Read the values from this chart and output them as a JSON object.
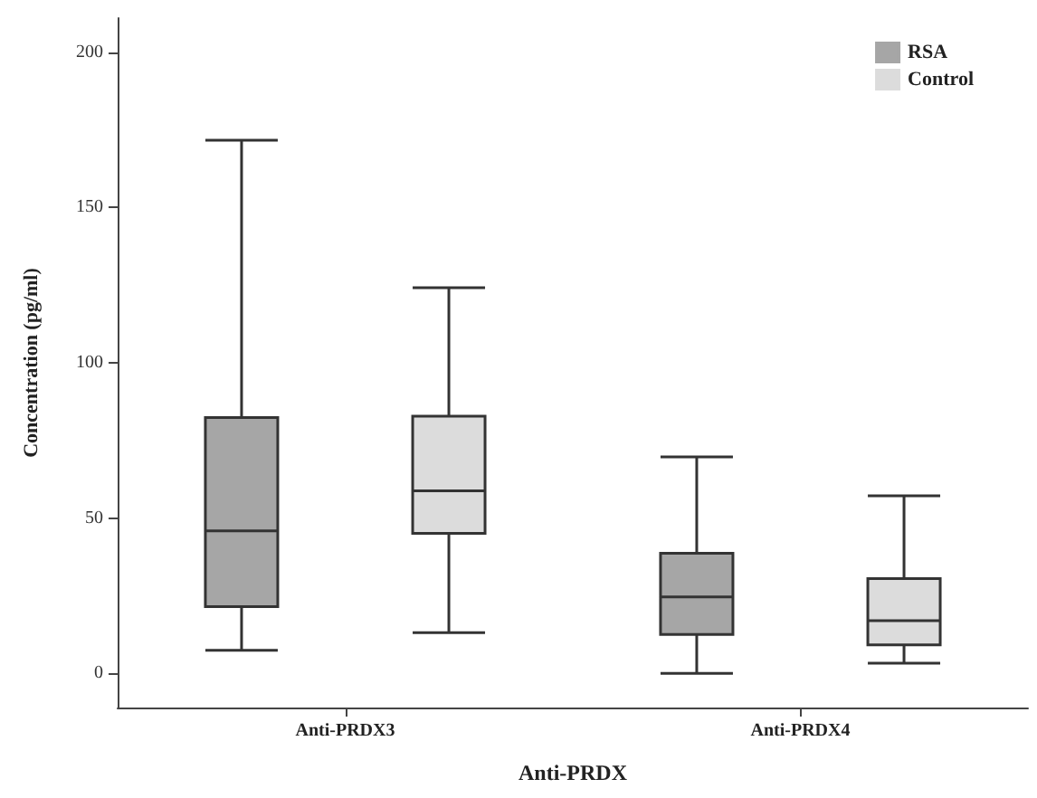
{
  "chart_data": {
    "type": "box",
    "xlabel": "Anti-PRDX",
    "ylabel": "Concentration (pg/ml)",
    "categories": [
      "Anti-PRDX3",
      "Anti-PRDX4"
    ],
    "series": [
      {
        "name": "RSA",
        "color": "#a6a6a6",
        "boxes": [
          {
            "low": 7.4,
            "q1": 21.5,
            "median": 45.9,
            "q3": 82.4,
            "high": 171.7
          },
          {
            "low": 0,
            "q1": 12.5,
            "median": 24.6,
            "q3": 38.7,
            "high": 69.7
          }
        ]
      },
      {
        "name": "Control",
        "color": "#dcdcdc",
        "boxes": [
          {
            "low": 13.1,
            "q1": 45.1,
            "median": 58.8,
            "q3": 82.8,
            "high": 124.2
          },
          {
            "low": 3.3,
            "q1": 9.2,
            "median": 17,
            "q3": 30.5,
            "high": 57.2
          }
        ]
      }
    ],
    "ylim": [
      -11,
      211
    ],
    "yticks": [
      0,
      50,
      100,
      150,
      200
    ],
    "grid": false,
    "legend": "top right"
  }
}
